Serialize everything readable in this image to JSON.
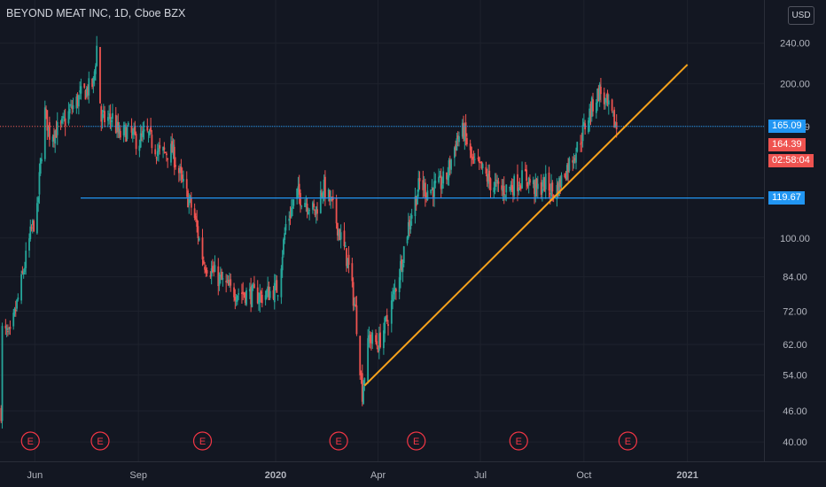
{
  "header": {
    "symbol_title": "BEYOND MEAT INC, 1D, Cboe BZX",
    "currency_label": "USD"
  },
  "colors": {
    "background": "#131722",
    "up_candle": "#26a69a",
    "down_candle": "#ef5350",
    "horizontal_line": "#2196f3",
    "trend_line": "#f7a21b",
    "earnings_marker": "#f23645",
    "last_price_bg": "#ef5350"
  },
  "price_labels": {
    "resistance": "165.09",
    "last_price": "164.39",
    "countdown": "02:58:04",
    "support": "119.67"
  },
  "chart_data": {
    "type": "candlestick",
    "title": "BEYOND MEAT INC, 1D, Cboe BZX",
    "y_scale": "log",
    "ylim": [
      38,
      280
    ],
    "y_ticks": [
      "240.00",
      "200.00",
      "165.09",
      "100.00",
      "84.00",
      "72.00",
      "62.00",
      "54.00",
      "46.00",
      "40.00"
    ],
    "x_ticks": [
      "Jun",
      "Sep",
      "2020",
      "Apr",
      "Jul",
      "Oct",
      "2021"
    ],
    "xlim": [
      "2019-05-01",
      "2021-03-10"
    ],
    "series": [
      {
        "name": "price_path",
        "points": [
          [
            "2019-05-02",
            46
          ],
          [
            "2019-05-03",
            66
          ],
          [
            "2019-05-10",
            64
          ],
          [
            "2019-05-20",
            82
          ],
          [
            "2019-05-29",
            104
          ],
          [
            "2019-06-03",
            112
          ],
          [
            "2019-06-06",
            140
          ],
          [
            "2019-06-10",
            176
          ],
          [
            "2019-06-14",
            160
          ],
          [
            "2019-06-24",
            164
          ],
          [
            "2019-07-03",
            178
          ],
          [
            "2019-07-12",
            190
          ],
          [
            "2019-07-23",
            200
          ],
          [
            "2019-07-26",
            236
          ],
          [
            "2019-07-30",
            170
          ],
          [
            "2019-08-09",
            172
          ],
          [
            "2019-08-15",
            158
          ],
          [
            "2019-08-22",
            162
          ],
          [
            "2019-09-01",
            154
          ],
          [
            "2019-09-08",
            160
          ],
          [
            "2019-09-20",
            146
          ],
          [
            "2019-10-01",
            148
          ],
          [
            "2019-10-10",
            128
          ],
          [
            "2019-10-20",
            112
          ],
          [
            "2019-10-29",
            90
          ],
          [
            "2019-11-10",
            84
          ],
          [
            "2019-11-22",
            79
          ],
          [
            "2019-12-05",
            78
          ],
          [
            "2019-12-20",
            77
          ],
          [
            "2020-01-03",
            80
          ],
          [
            "2020-01-10",
            106
          ],
          [
            "2020-01-20",
            122
          ],
          [
            "2020-01-28",
            118
          ],
          [
            "2020-02-05",
            112
          ],
          [
            "2020-02-12",
            126
          ],
          [
            "2020-02-20",
            116
          ],
          [
            "2020-02-27",
            102
          ],
          [
            "2020-03-05",
            90
          ],
          [
            "2020-03-12",
            72
          ],
          [
            "2020-03-18",
            50
          ],
          [
            "2020-03-24",
            64
          ],
          [
            "2020-04-01",
            62
          ],
          [
            "2020-04-10",
            70
          ],
          [
            "2020-04-20",
            86
          ],
          [
            "2020-04-28",
            106
          ],
          [
            "2020-05-08",
            128
          ],
          [
            "2020-05-14",
            124
          ],
          [
            "2020-05-25",
            126
          ],
          [
            "2020-06-01",
            132
          ],
          [
            "2020-06-10",
            156
          ],
          [
            "2020-06-16",
            162
          ],
          [
            "2020-06-24",
            140
          ],
          [
            "2020-07-02",
            136
          ],
          [
            "2020-07-10",
            128
          ],
          [
            "2020-07-20",
            124
          ],
          [
            "2020-07-28",
            126
          ],
          [
            "2020-08-10",
            132
          ],
          [
            "2020-08-20",
            124
          ],
          [
            "2020-08-28",
            128
          ],
          [
            "2020-09-05",
            122
          ],
          [
            "2020-09-15",
            136
          ],
          [
            "2020-09-25",
            150
          ],
          [
            "2020-10-02",
            166
          ],
          [
            "2020-10-10",
            185
          ],
          [
            "2020-10-15",
            194
          ],
          [
            "2020-10-22",
            180
          ],
          [
            "2020-10-30",
            164.39
          ]
        ]
      }
    ],
    "horizontal_lines": [
      165.09,
      119.67
    ],
    "trend_line": [
      [
        "2020-03-20",
        51.5
      ],
      [
        "2021-01-01",
        218
      ]
    ],
    "earnings_markers": {
      "label": "E",
      "dates": [
        "2019-05-28",
        "2019-07-29",
        "2019-10-28",
        "2020-02-26",
        "2020-05-05",
        "2020-08-04",
        "2020-11-09"
      ]
    }
  }
}
